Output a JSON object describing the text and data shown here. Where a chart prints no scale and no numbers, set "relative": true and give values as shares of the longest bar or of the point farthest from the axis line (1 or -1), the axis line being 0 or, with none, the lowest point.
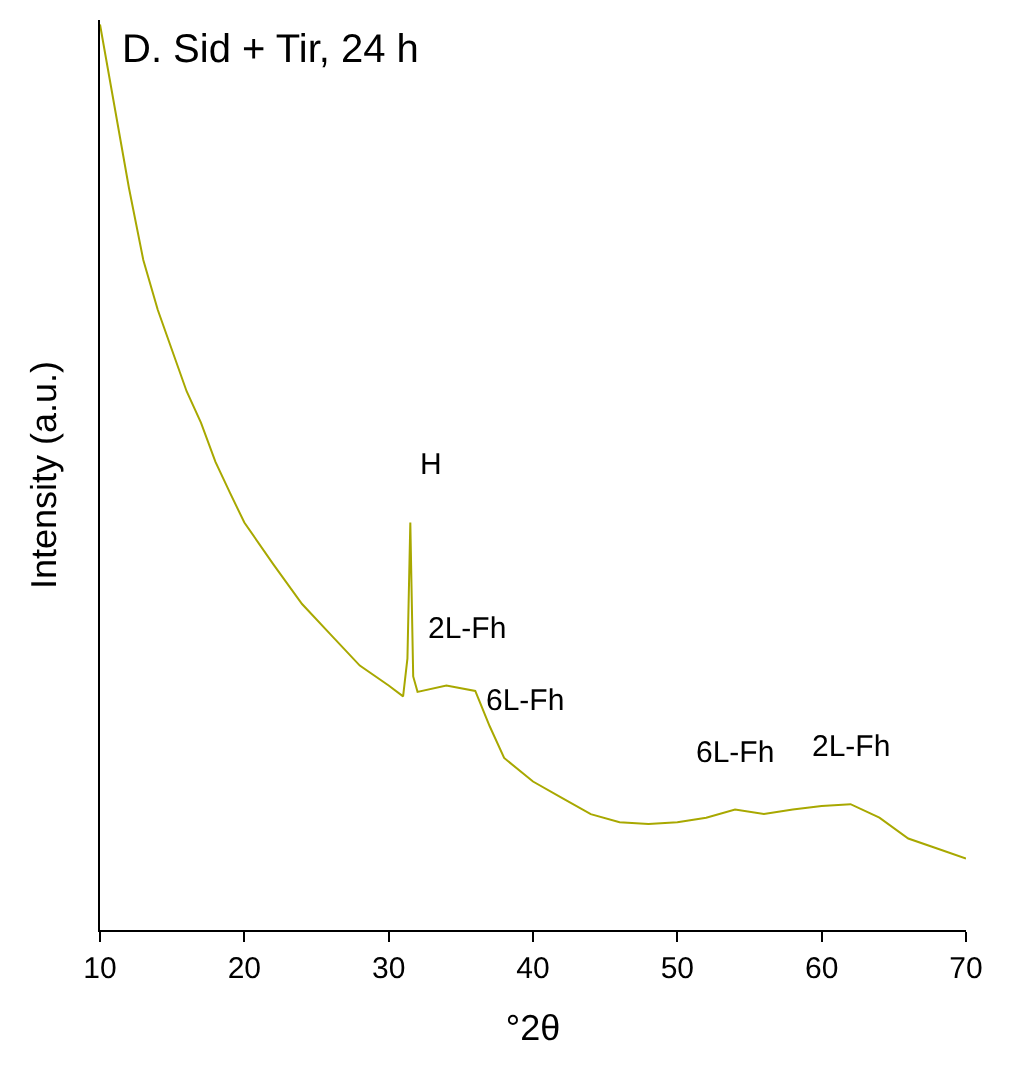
{
  "chart_data": {
    "type": "line",
    "title": "D. Sid + Tir, 24 h",
    "xlabel": "°2θ",
    "ylabel": "Intensity (a.u.)",
    "relative": true,
    "xlim": [
      10,
      70
    ],
    "xticks": [
      10,
      20,
      30,
      40,
      50,
      60,
      70
    ],
    "tick_labels": "x",
    "x": [
      10,
      11,
      12,
      13,
      14,
      15,
      16,
      17,
      18,
      19,
      20,
      22,
      24,
      26,
      28,
      30,
      31,
      31.3,
      31.5,
      31.7,
      32,
      34,
      36,
      37,
      38,
      40,
      42,
      44,
      46,
      48,
      50,
      52,
      54,
      56,
      58,
      60,
      62,
      64,
      66,
      68,
      70
    ],
    "series": [
      {
        "color": "#a8a800",
        "values": [
          1.0,
          0.91,
          0.82,
          0.74,
          0.685,
          0.64,
          0.595,
          0.56,
          0.517,
          0.483,
          0.45,
          0.404,
          0.36,
          0.326,
          0.292,
          0.27,
          0.258,
          0.3,
          0.45,
          0.28,
          0.263,
          0.27,
          0.264,
          0.225,
          0.19,
          0.164,
          0.146,
          0.128,
          0.119,
          0.117,
          0.119,
          0.124,
          0.133,
          0.128,
          0.133,
          0.137,
          0.139,
          0.124,
          0.101,
          0.09,
          0.079
        ]
      }
    ],
    "annotations": [
      {
        "text": "H",
        "x": 31.5,
        "y": 0.45
      },
      {
        "text": "2L-Fh",
        "x": 34,
        "y": 0.27
      },
      {
        "text": "6L-Fh",
        "x": 38,
        "y": 0.19
      },
      {
        "text": "6L-Fh",
        "x": 54,
        "y": 0.133
      },
      {
        "text": "2L-Fh",
        "x": 62,
        "y": 0.139
      }
    ]
  }
}
